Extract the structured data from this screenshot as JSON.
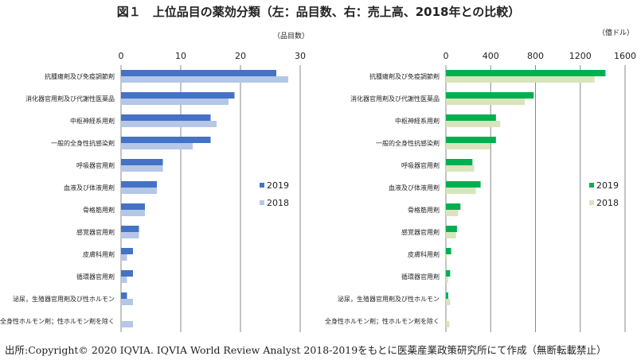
{
  "title": "図１　上位品目の薬効分類（左：品目数、右：売上高、2018年との比較）",
  "footer": "出所:Copyright© 2020 IQVIA. IQVIA World Review Analyst 2018-2019をもとに医薬産業政策研究所にて作成（無断転載禁止）",
  "chart_data": [
    {
      "type": "bar",
      "orientation": "horizontal",
      "unit_label": "（品目数）",
      "categories": [
        "抗腫瘍剤及び免疫調節剤",
        "消化器官用剤及び代謝性医薬品",
        "中枢神経系用剤",
        "一般的全身性抗感染剤",
        "呼吸器官用剤",
        "血液及び体液用剤",
        "骨格筋用剤",
        "感覚器官用剤",
        "皮膚科用剤",
        "循環器官用剤",
        "泌尿，生殖器官用剤及び性ホルモン",
        "全身性ホルモン剤；性ホルモン剤を除く"
      ],
      "xlim": [
        0,
        30
      ],
      "ticks": [
        "0",
        "10",
        "20",
        "30"
      ],
      "grid": true,
      "legend": "right",
      "series": [
        {
          "name": "2019",
          "color": "#4472c4",
          "values": [
            26,
            19,
            15,
            15,
            7,
            6,
            4,
            3,
            2,
            2,
            1,
            0
          ]
        },
        {
          "name": "2018",
          "color": "#b4c7e7",
          "values": [
            28,
            18,
            16,
            12,
            7,
            6,
            4,
            3,
            1,
            1,
            2,
            2
          ]
        }
      ]
    },
    {
      "type": "bar",
      "orientation": "horizontal",
      "unit_label": "（億ドル）",
      "categories": [
        "抗腫瘍剤及び免疫調節剤",
        "消化器官用剤及び代謝性医薬品",
        "中枢神経系用剤",
        "一般的全身性抗感染剤",
        "呼吸器官用剤",
        "血液及び体液用剤",
        "骨格筋用剤",
        "感覚器官用剤",
        "皮膚科用剤",
        "循環器官用剤",
        "泌尿，生殖器官用剤及び性ホルモン",
        "全身性ホルモン剤；性ホルモン剤を除く"
      ],
      "xlim": [
        0,
        1600
      ],
      "ticks": [
        "0",
        "400",
        "800",
        "1200",
        "1600"
      ],
      "grid": true,
      "legend": "right",
      "series": [
        {
          "name": "2019",
          "color": "#00b050",
          "values": [
            1425,
            784,
            447,
            447,
            237,
            310,
            130,
            99,
            47,
            38,
            21,
            0
          ]
        },
        {
          "name": "2018",
          "color": "#d8e4bc",
          "values": [
            1328,
            705,
            485,
            395,
            253,
            267,
            109,
            90,
            10,
            19,
            38,
            31
          ]
        }
      ]
    }
  ]
}
